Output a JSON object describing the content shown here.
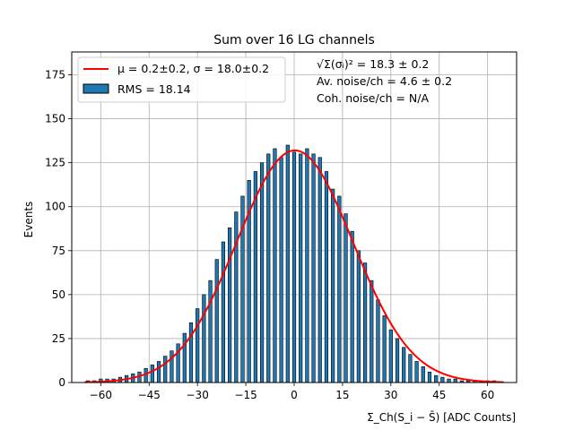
{
  "chart_data": {
    "type": "bar",
    "title": "Sum over 16 LG channels",
    "xlabel": "Σ_Ch(S_i − S̄) [ADC Counts]",
    "ylabel": "Events",
    "xlim": [
      -69,
      69
    ],
    "ylim": [
      0,
      188
    ],
    "xticks": [
      -60,
      -45,
      -30,
      -15,
      0,
      15,
      30,
      45,
      60
    ],
    "yticks": [
      0,
      25,
      50,
      75,
      100,
      125,
      150,
      175
    ],
    "grid": true,
    "bin_width": 1,
    "hist_color": "#1f77b4",
    "fit_color": "#ff0000",
    "x": [
      -64,
      -62,
      -60,
      -58,
      -56,
      -54,
      -52,
      -50,
      -48,
      -46,
      -44,
      -42,
      -40,
      -38,
      -36,
      -34,
      -32,
      -30,
      -28,
      -26,
      -24,
      -22,
      -20,
      -18,
      -16,
      -14,
      -12,
      -10,
      -8,
      -6,
      -4,
      -2,
      0,
      2,
      4,
      6,
      8,
      10,
      12,
      14,
      16,
      18,
      20,
      22,
      24,
      26,
      28,
      30,
      32,
      34,
      36,
      38,
      40,
      42,
      44,
      46,
      48,
      50,
      52,
      54,
      56,
      58,
      60,
      62,
      64
    ],
    "values": [
      1,
      1,
      2,
      2,
      2,
      3,
      4,
      5,
      6,
      8,
      10,
      12,
      15,
      18,
      22,
      28,
      34,
      42,
      50,
      58,
      70,
      80,
      88,
      97,
      106,
      115,
      120,
      125,
      130,
      133,
      128,
      135,
      131,
      130,
      133,
      130,
      128,
      120,
      110,
      106,
      96,
      86,
      75,
      68,
      58,
      47,
      38,
      30,
      25,
      20,
      16,
      12,
      9,
      6,
      4,
      3,
      2,
      2,
      1,
      1,
      1,
      1,
      1,
      1,
      0
    ],
    "fit": {
      "mu": 0.2,
      "sigma": 18.0,
      "amplitude": 132
    },
    "legend": {
      "position": "top-left",
      "fit_label": "μ = 0.2±0.2, σ = 18.0±0.2",
      "hist_label": "RMS = 18.14"
    },
    "annotations": [
      "√Σ(σᵢ)² = 18.3 ± 0.2",
      "Av. noise/ch = 4.6 ± 0.2",
      "Coh. noise/ch = N/A"
    ]
  }
}
